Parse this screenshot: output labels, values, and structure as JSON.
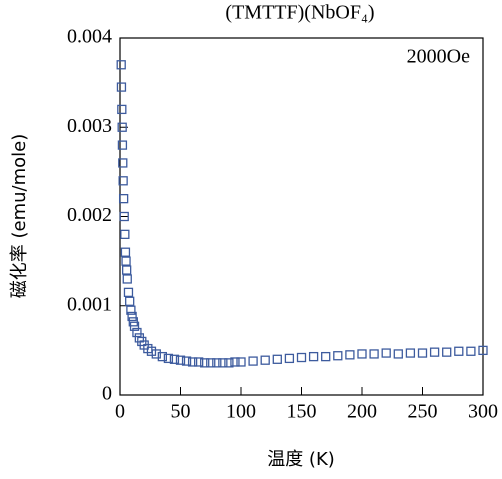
{
  "chart_data": {
    "type": "scatter",
    "title": "(TMTTF)(NbOF₄)",
    "annotation": "2000Oe",
    "x_label": "温度 (K)",
    "y_label": "磁化率 (emu/mole)",
    "color": "#3d5b9e",
    "x": [
      1,
      1.2,
      1.5,
      1.8,
      2,
      2.3,
      2.6,
      3,
      3.5,
      4,
      4.5,
      5,
      5.5,
      6,
      7,
      8,
      9,
      10,
      11,
      12,
      14,
      16,
      18,
      20,
      23,
      26,
      30,
      35,
      40,
      45,
      50,
      55,
      60,
      65,
      70,
      75,
      80,
      85,
      90,
      95,
      100,
      110,
      120,
      130,
      140,
      150,
      160,
      170,
      180,
      190,
      200,
      210,
      220,
      230,
      240,
      250,
      260,
      270,
      280,
      290,
      300
    ],
    "series": [
      {
        "values": [
          0.0037,
          0.00345,
          0.0032,
          0.003,
          0.0028,
          0.0026,
          0.0024,
          0.0022,
          0.002,
          0.0018,
          0.0016,
          0.0015,
          0.0014,
          0.0013,
          0.00115,
          0.00105,
          0.00095,
          0.00088,
          0.00082,
          0.00077,
          0.0007,
          0.00064,
          0.0006,
          0.00056,
          0.00052,
          0.00049,
          0.00046,
          0.00043,
          0.00041,
          0.0004,
          0.00039,
          0.00038,
          0.00037,
          0.00037,
          0.00036,
          0.00036,
          0.00036,
          0.00036,
          0.00036,
          0.00037,
          0.00037,
          0.00038,
          0.00039,
          0.0004,
          0.00041,
          0.00042,
          0.00043,
          0.00043,
          0.00044,
          0.00045,
          0.00046,
          0.00046,
          0.00047,
          0.00046,
          0.00047,
          0.00047,
          0.00048,
          0.00048,
          0.00049,
          0.00049,
          0.0005
        ]
      }
    ],
    "xlim": [
      0,
      300
    ],
    "xticks": [
      0,
      50,
      100,
      150,
      200,
      250,
      300
    ],
    "ylim": [
      0,
      0.004
    ],
    "yticks": [
      0,
      0.001,
      0.002,
      0.003,
      0.004
    ]
  }
}
